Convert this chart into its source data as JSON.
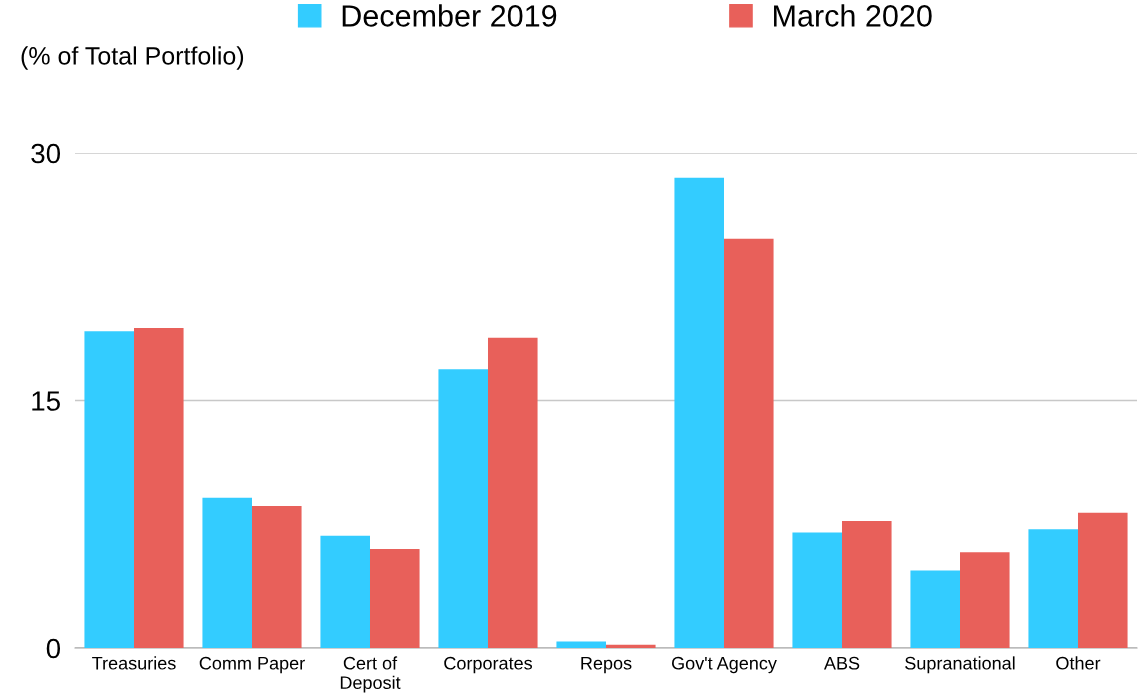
{
  "chart_data": {
    "type": "bar",
    "ylabel": "(% of Total Portfolio)",
    "categories": [
      "Treasuries",
      "Comm Paper",
      "Cert of Deposit",
      "Corporates",
      "Repos",
      "Gov't Agency",
      "ABS",
      "Supranational",
      "Other"
    ],
    "series": [
      {
        "name": "December 2019",
        "color": "#33ccff",
        "values": [
          19.2,
          9.1,
          6.8,
          16.9,
          0.4,
          28.5,
          7.0,
          4.7,
          7.2
        ]
      },
      {
        "name": "March 2020",
        "color": "#e8605a",
        "values": [
          19.4,
          8.6,
          6.0,
          18.8,
          0.2,
          24.8,
          7.7,
          5.8,
          8.2
        ]
      }
    ],
    "ylim": [
      0,
      30
    ],
    "yticks": [
      0,
      15,
      30
    ],
    "grid": "y",
    "legend": "top"
  }
}
